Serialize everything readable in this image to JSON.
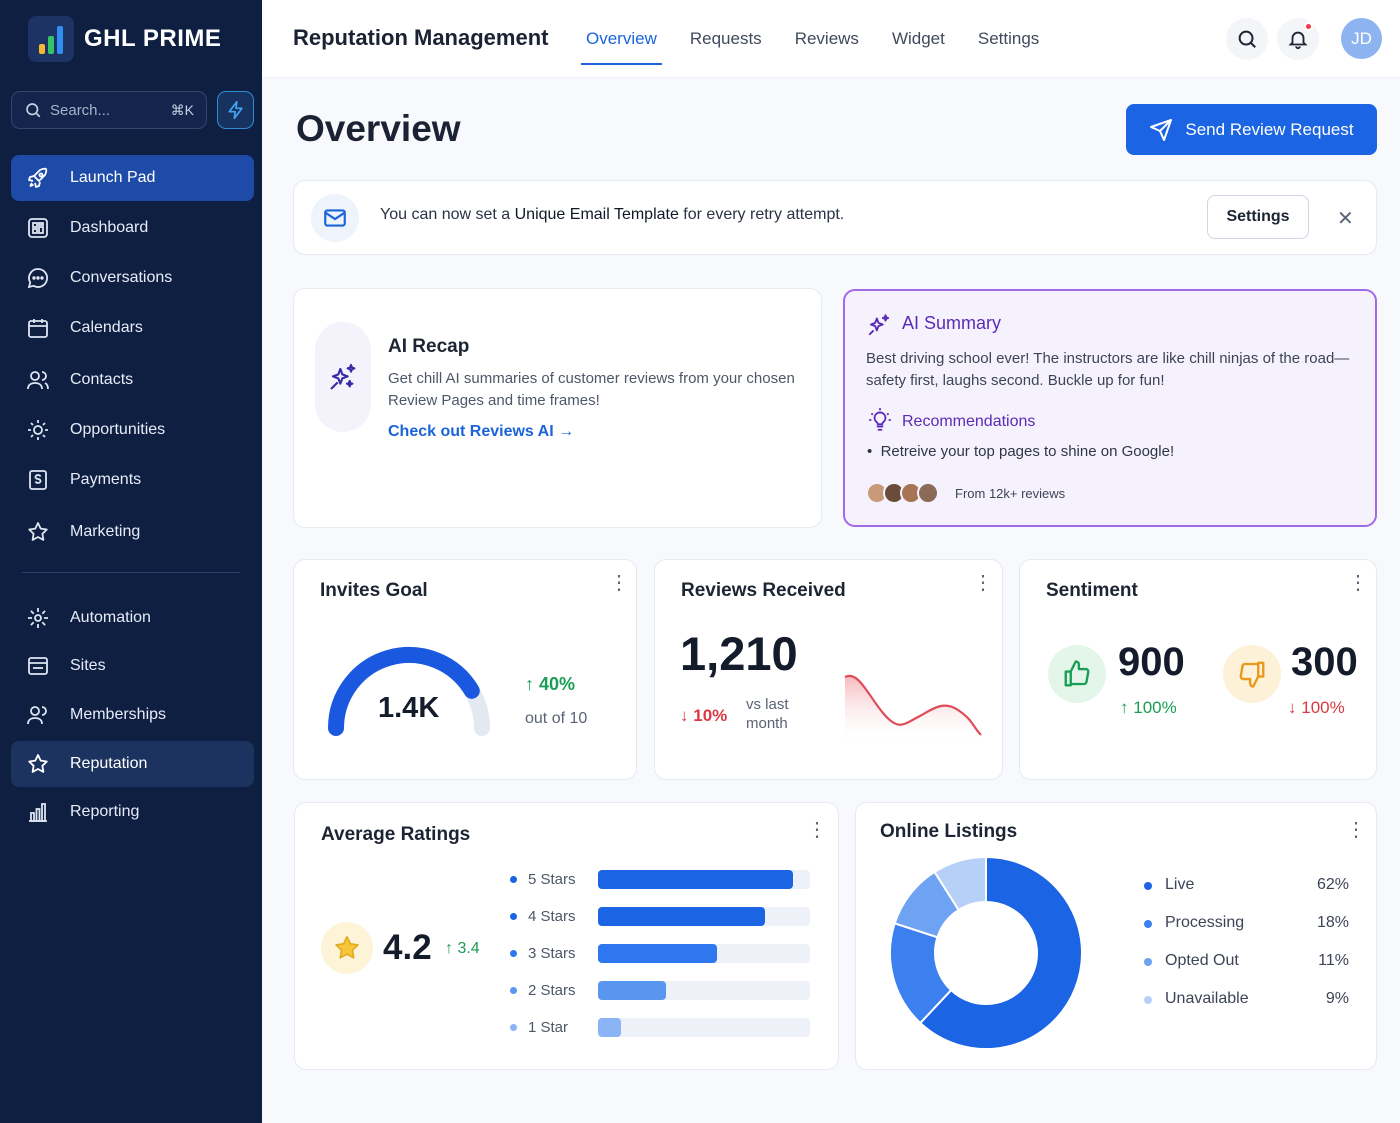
{
  "brand": {
    "name": "GHL PRIME"
  },
  "sidebar": {
    "search_placeholder": "Search...",
    "shortcut": "⌘K",
    "items": [
      {
        "label": "Launch Pad",
        "icon": "rocket-icon"
      },
      {
        "label": "Dashboard",
        "icon": "dashboard-icon"
      },
      {
        "label": "Conversations",
        "icon": "chat-icon"
      },
      {
        "label": "Calendars",
        "icon": "calendar-icon"
      },
      {
        "label": "Contacts",
        "icon": "contacts-icon"
      },
      {
        "label": "Opportunities",
        "icon": "opportunities-icon"
      },
      {
        "label": "Payments",
        "icon": "payments-icon"
      },
      {
        "label": "Marketing",
        "icon": "marketing-icon"
      },
      {
        "label": "Automation",
        "icon": "automation-icon"
      },
      {
        "label": "Sites",
        "icon": "sites-icon"
      },
      {
        "label": "Memberships",
        "icon": "memberships-icon"
      },
      {
        "label": "Reputation",
        "icon": "star-icon"
      },
      {
        "label": "Reporting",
        "icon": "reporting-icon"
      }
    ]
  },
  "header": {
    "title": "Reputation Management",
    "tabs": [
      "Overview",
      "Requests",
      "Reviews",
      "Widget",
      "Settings"
    ],
    "active_tab": "Overview",
    "avatar_initials": "JD"
  },
  "page": {
    "title": "Overview",
    "send_button": "Send Review Request"
  },
  "banner": {
    "text_before": "You can now set a ",
    "text_bold": "Unique Email Template",
    "text_after": " for every retry attempt.",
    "settings_button": "Settings"
  },
  "recap": {
    "title": "AI Recap",
    "description": "Get chill AI summaries of customer reviews from your chosen Review Pages and time frames!",
    "link": "Check out Reviews AI"
  },
  "summary": {
    "title": "AI Summary",
    "text": "Best driving school ever! The instructors are like chill ninjas of the road—safety first, laughs second. Buckle up for fun!",
    "recommendations_title": "Recommendations",
    "recommendation": "Retreive your top pages to shine on Google!",
    "from": "From 12k+ reviews"
  },
  "invites": {
    "title": "Invites Goal",
    "value": "1.4K",
    "change": "40%",
    "subtext": "out of 10",
    "progress": 0.83
  },
  "reviews": {
    "title": "Reviews Received",
    "value": "1,210",
    "change": "10%",
    "subtext_1": "vs last",
    "subtext_2": "month"
  },
  "sentiment": {
    "title": "Sentiment",
    "positive": "900",
    "positive_change": "100%",
    "negative": "300",
    "negative_change": "100%"
  },
  "ratings": {
    "title": "Average Ratings",
    "value": "4.2",
    "change": "3.4",
    "rows": [
      {
        "label": "5 Stars",
        "fraction": 0.92,
        "color": "#1b64e4"
      },
      {
        "label": "4 Stars",
        "fraction": 0.79,
        "color": "#1b64e4"
      },
      {
        "label": "3 Stars",
        "fraction": 0.56,
        "color": "#2e77ee"
      },
      {
        "label": "2 Stars",
        "fraction": 0.32,
        "color": "#5a95f0"
      },
      {
        "label": "1 Star",
        "fraction": 0.11,
        "color": "#8ab4f6"
      }
    ]
  },
  "listings": {
    "title": "Online Listings",
    "items": [
      {
        "label": "Live",
        "value": "62%",
        "color": "#1b64e4"
      },
      {
        "label": "Processing",
        "value": "18%",
        "color": "#3b80ee"
      },
      {
        "label": "Opted Out",
        "value": "11%",
        "color": "#6ea2f2"
      },
      {
        "label": "Unavailable",
        "value": "9%",
        "color": "#b6d0f8"
      }
    ]
  },
  "chart_data": [
    {
      "type": "pie",
      "title": "Online Listings",
      "categories": [
        "Live",
        "Processing",
        "Opted Out",
        "Unavailable"
      ],
      "values": [
        62,
        18,
        11,
        9
      ]
    },
    {
      "type": "bar",
      "title": "Average Ratings",
      "categories": [
        "5 Stars",
        "4 Stars",
        "3 Stars",
        "2 Stars",
        "1 Star"
      ],
      "values": [
        0.92,
        0.79,
        0.56,
        0.32,
        0.11
      ]
    }
  ]
}
